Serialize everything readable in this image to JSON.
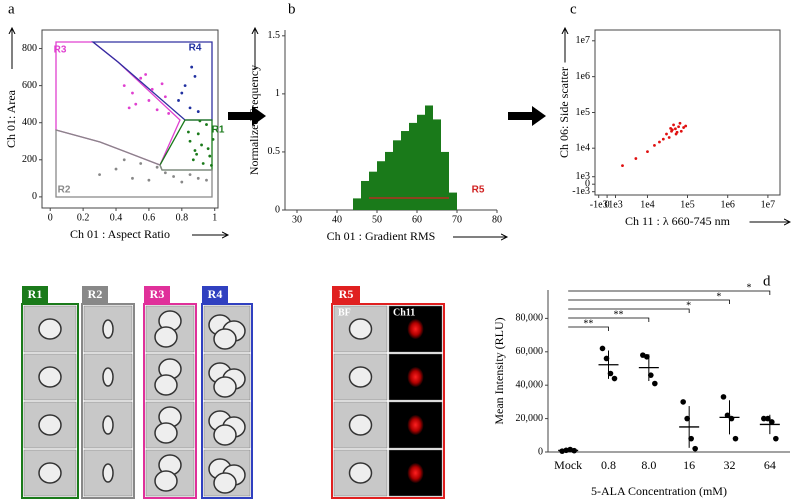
{
  "chart_data": [
    {
      "type": "scatter",
      "panel": "a",
      "frame": true,
      "ylabel": "Ch 01: Area",
      "xlabel": "Ch 01 : Aspect Ratio",
      "xlim": [
        -0.05,
        1.02
      ],
      "xticks": [
        0,
        0.2,
        0.4,
        0.6,
        0.8,
        1
      ],
      "ylim": [
        -60,
        900
      ],
      "yticks": [
        0,
        200,
        400,
        600,
        800
      ],
      "annotations": [
        "R1",
        "R2",
        "R3",
        "R4"
      ],
      "series": [
        {
          "color": "#1a7a1a",
          "x": [
            0.85,
            0.88,
            0.9,
            0.92,
            0.95,
            0.97,
            0.99,
            0.87,
            0.93,
            0.96,
            0.84,
            0.91,
            0.98,
            0.89
          ],
          "values": [
            300,
            250,
            340,
            280,
            390,
            220,
            310,
            200,
            180,
            260,
            350,
            410,
            170,
            230
          ]
        },
        {
          "color": "#e040d0",
          "x": [
            0.45,
            0.5,
            0.55,
            0.6,
            0.62,
            0.65,
            0.7,
            0.52,
            0.58,
            0.68,
            0.48,
            0.72
          ],
          "values": [
            600,
            560,
            640,
            520,
            580,
            470,
            540,
            500,
            660,
            610,
            480,
            450
          ]
        },
        {
          "color": "#2030a0",
          "x": [
            0.78,
            0.82,
            0.85,
            0.88,
            0.8,
            0.9,
            0.86
          ],
          "values": [
            520,
            600,
            480,
            650,
            560,
            460,
            700
          ]
        },
        {
          "color": "#888888",
          "x": [
            0.3,
            0.4,
            0.5,
            0.55,
            0.6,
            0.7,
            0.75,
            0.8,
            0.85,
            0.9,
            0.95,
            0.65,
            0.45
          ],
          "values": [
            120,
            150,
            100,
            180,
            90,
            130,
            110,
            80,
            120,
            100,
            90,
            160,
            200
          ]
        }
      ]
    },
    {
      "type": "histogram",
      "panel": "b",
      "frame": false,
      "ylabel": "Normalized Frequency",
      "xlabel": "Ch 01 : Gradient RMS",
      "xlim": [
        27,
        80
      ],
      "xticks": [
        30,
        40,
        50,
        60,
        70,
        80
      ],
      "ylim": [
        0,
        1.55
      ],
      "yticks": [
        0,
        0.5,
        1,
        1.5
      ],
      "color": "#1a7a1a",
      "annotations": [
        "R5"
      ],
      "bins": [
        44,
        46,
        48,
        50,
        52,
        54,
        56,
        58,
        60,
        62,
        64,
        66,
        68,
        70
      ],
      "counts": [
        0.1,
        0.25,
        0.33,
        0.42,
        0.5,
        0.6,
        0.68,
        0.75,
        0.82,
        0.9,
        0.78,
        0.5,
        0.15
      ]
    },
    {
      "type": "scatter",
      "panel": "c",
      "frame": true,
      "scale": "biexponential",
      "ylabel": "Ch 06: Side scatter",
      "xlabel": "Ch 11 : λ 660-745 nm",
      "xlim": [
        -1500,
        20000000
      ],
      "ylim": [
        -1500,
        20000000
      ],
      "xticks": [
        {
          "value": -1000,
          "label": "-1e3"
        },
        0,
        {
          "value": 1000,
          "label": "1e3"
        },
        {
          "value": 10000,
          "label": "1e4"
        },
        {
          "value": 100000,
          "label": "1e5"
        },
        {
          "value": 1000000,
          "label": "1e6"
        },
        {
          "value": 10000000,
          "label": "1e7"
        }
      ],
      "yticks": [
        {
          "value": -1000,
          "label": "-1e3"
        },
        0,
        {
          "value": 1000,
          "label": "1e3"
        },
        {
          "value": 10000,
          "label": "1e4"
        },
        {
          "value": 100000,
          "label": "1e5"
        },
        {
          "value": 1000000,
          "label": "1e6"
        },
        {
          "value": 10000000,
          "label": "1e7"
        }
      ],
      "series": [
        {
          "color": "#e01010",
          "x": [
            30000,
            40000,
            50000,
            60000,
            70000,
            45000,
            55000,
            35000,
            80000,
            25000,
            65000,
            42000,
            52000,
            20000,
            10000,
            5000,
            2000,
            15000,
            90000,
            38000
          ],
          "values": [
            25000,
            30000,
            35000,
            40000,
            30000,
            45000,
            28000,
            20000,
            38000,
            18000,
            50000,
            33000,
            25000,
            15000,
            8000,
            5000,
            3000,
            12000,
            42000,
            36000
          ]
        }
      ]
    },
    {
      "type": "dotplot",
      "panel": "d",
      "frame": false,
      "ylabel": "Mean Intensity (RLU)",
      "xlabel": "5-ALA Concentration (mM)",
      "categories": [
        "Mock",
        "0.8",
        "8.0",
        "16",
        "32",
        "64"
      ],
      "ylim": [
        0,
        97000
      ],
      "yticks": [
        0,
        {
          "value": 20000,
          "label": "20,000"
        },
        {
          "value": 40000,
          "label": "40,000"
        },
        {
          "value": 60000,
          "label": "60,000"
        },
        {
          "value": 80000,
          "label": "80,000"
        }
      ],
      "values": [
        950,
        52250,
        50500,
        15000,
        20750,
        16500
      ],
      "errors": [
        200,
        8500,
        8000,
        12500,
        10200,
        5800
      ],
      "points": [
        [
          500,
          1000,
          1500,
          800
        ],
        [
          62000,
          56000,
          47000,
          44000
        ],
        [
          58000,
          57000,
          46000,
          41000
        ],
        [
          30000,
          20000,
          8000,
          2000
        ],
        [
          33000,
          22000,
          20000,
          8000
        ],
        [
          20000,
          20000,
          18000,
          8000
        ]
      ],
      "annotations": [
        "**",
        "**",
        "*",
        "*",
        "*"
      ],
      "color": "#000000"
    }
  ],
  "galleries": [
    {
      "label": "R1",
      "color": "#1a7a1a"
    },
    {
      "label": "R2",
      "color": "#888888"
    },
    {
      "label": "R3",
      "color": "#e0309a"
    },
    {
      "label": "R4",
      "color": "#3040c0"
    }
  ],
  "r5_gallery": {
    "label": "R5",
    "color": "#e02020",
    "columns": [
      "BF",
      "Ch11"
    ]
  }
}
